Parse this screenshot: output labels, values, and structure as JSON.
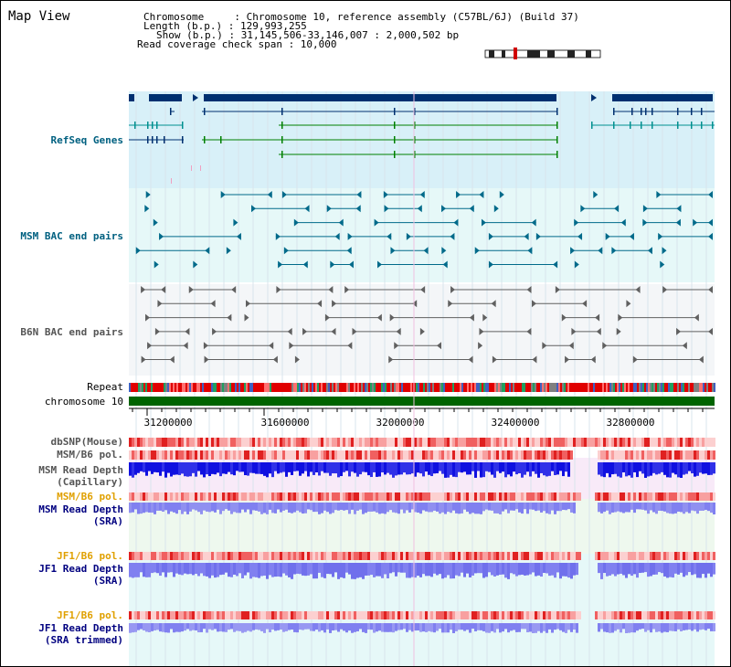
{
  "page_title": "Map View",
  "header": {
    "chromosome": "Chromosome     : Chromosome 10, reference assembly (C57BL/6J) (Build 37)",
    "length": "Length (b.p.) : 129,993,255",
    "show": "Show (b.p.) : 31,145,506-33,146,007 : 2,000,502 bp",
    "coverage": "Read coverage check span : 10,000"
  },
  "tracks": {
    "refseq": "RefSeq Genes",
    "msm_bac": "MSM BAC end pairs",
    "b6n_bac": "B6N BAC end pairs",
    "repeat": "Repeat",
    "chromosome": "chromosome 10",
    "dbsnp": "dbSNP(Mouse)",
    "msm_b6_pol": "MSM/B6 pol.",
    "msm_depth_cap_1": "MSM Read Depth",
    "msm_depth_cap_2": "(Capillary)",
    "msm_b6_pol2": "MSM/B6 pol.",
    "msm_depth_sra_1": "MSM Read Depth",
    "msm_depth_sra_2": "(SRA)",
    "jf1_b6_pol": "JF1/B6 pol.",
    "jf1_depth_sra_1": "JF1 Read Depth",
    "jf1_depth_sra_2": "(SRA)",
    "jf1_b6_pol2": "JF1/B6 pol.",
    "jf1_depth_trim_1": "JF1 Read Depth",
    "jf1_depth_trim_2": "(SRA trimmed)"
  },
  "axis": {
    "ticks": [
      "31200000",
      "31600000",
      "32000000",
      "32400000",
      "32800000"
    ]
  },
  "colors": {
    "refseq_bg": "#d8f0f8",
    "bac_bg": "#e6f8f8",
    "gene": "#003070",
    "chromosome_bar": "#006400",
    "depth_dark": "#1010e0",
    "depth_light": "#8080f0"
  }
}
